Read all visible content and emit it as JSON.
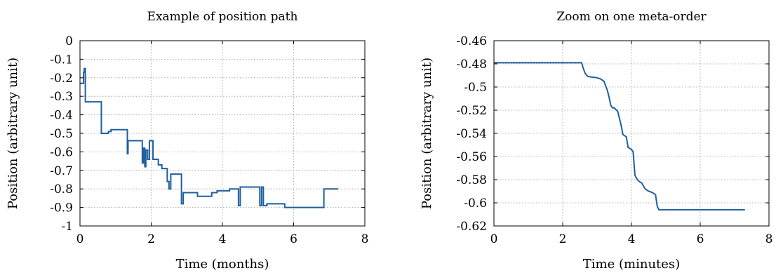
{
  "chart_data": [
    {
      "type": "line",
      "title": "Example of position path",
      "xlabel": "Time (months)",
      "ylabel": "Position (arbitrary unit)",
      "xlim": [
        0,
        8
      ],
      "ylim": [
        -1,
        0
      ],
      "xticks": [
        0,
        2,
        4,
        6,
        8
      ],
      "yticks": [
        0,
        -0.1,
        -0.2,
        -0.3,
        -0.4,
        -0.5,
        -0.6,
        -0.7,
        -0.8,
        -0.9,
        -1
      ],
      "xtick_labels": [
        "0",
        "2",
        "4",
        "6",
        "8"
      ],
      "ytick_labels": [
        "0",
        "-0.1",
        "-0.2",
        "-0.3",
        "-0.4",
        "-0.5",
        "-0.6",
        "-0.7",
        "-0.8",
        "-0.9",
        "-1"
      ],
      "grid": true,
      "color": "#1f5fa0",
      "series": [
        {
          "x": [
            0,
            0.1,
            0.1,
            0.12,
            0.12,
            0.15,
            0.15,
            0.25,
            0.25,
            0.6,
            0.6,
            0.8,
            0.8,
            0.87,
            0.87,
            1.33,
            1.33,
            1.35,
            1.35,
            1.75,
            1.75,
            1.78,
            1.78,
            1.82,
            1.82,
            1.85,
            1.85,
            1.9,
            1.9,
            1.95,
            1.95,
            2.05,
            2.05,
            2.2,
            2.2,
            2.3,
            2.3,
            2.45,
            2.45,
            2.5,
            2.5,
            2.55,
            2.55,
            2.6,
            2.6,
            2.85,
            2.85,
            2.9,
            2.9,
            3.3,
            3.3,
            3.7,
            3.7,
            3.85,
            3.85,
            4.2,
            4.2,
            4.45,
            4.45,
            4.5,
            4.5,
            5.05,
            5.05,
            5.1,
            5.1,
            5.15,
            5.15,
            5.25,
            5.25,
            5.3,
            5.3,
            5.75,
            5.75,
            6.85,
            6.85,
            7.25
          ],
          "y": [
            -0.23,
            -0.23,
            -0.17,
            -0.17,
            -0.15,
            -0.15,
            -0.33,
            -0.33,
            -0.33,
            -0.33,
            -0.5,
            -0.5,
            -0.49,
            -0.49,
            -0.48,
            -0.48,
            -0.61,
            -0.61,
            -0.54,
            -0.54,
            -0.66,
            -0.66,
            -0.58,
            -0.58,
            -0.68,
            -0.68,
            -0.59,
            -0.59,
            -0.64,
            -0.64,
            -0.54,
            -0.54,
            -0.64,
            -0.64,
            -0.67,
            -0.67,
            -0.69,
            -0.69,
            -0.76,
            -0.76,
            -0.8,
            -0.8,
            -0.72,
            -0.72,
            -0.72,
            -0.72,
            -0.88,
            -0.88,
            -0.82,
            -0.82,
            -0.84,
            -0.84,
            -0.82,
            -0.82,
            -0.81,
            -0.81,
            -0.8,
            -0.8,
            -0.89,
            -0.89,
            -0.79,
            -0.79,
            -0.89,
            -0.89,
            -0.79,
            -0.79,
            -0.89,
            -0.89,
            -0.88,
            -0.88,
            -0.88,
            -0.88,
            -0.9,
            -0.9,
            -0.8,
            -0.8
          ]
        }
      ]
    },
    {
      "type": "line",
      "title": "Zoom on one meta-order",
      "xlabel": "Time (minutes)",
      "ylabel": "Position (arbitrary unit)",
      "xlim": [
        0,
        8
      ],
      "ylim": [
        -0.62,
        -0.46
      ],
      "xticks": [
        0,
        2,
        4,
        6,
        8
      ],
      "yticks": [
        -0.46,
        -0.48,
        -0.5,
        -0.52,
        -0.54,
        -0.56,
        -0.58,
        -0.6,
        -0.62
      ],
      "xtick_labels": [
        "0",
        "2",
        "4",
        "6",
        "8"
      ],
      "ytick_labels": [
        "-0.46",
        "-0.48",
        "-0.5",
        "-0.52",
        "-0.54",
        "-0.56",
        "-0.58",
        "-0.6",
        "-0.62"
      ],
      "grid": true,
      "color": "#1f5fa0",
      "series": [
        {
          "x": [
            0,
            2.55,
            2.6,
            2.65,
            2.7,
            2.75,
            3.0,
            3.1,
            3.2,
            3.3,
            3.35,
            3.4,
            3.45,
            3.5,
            3.6,
            3.7,
            3.75,
            3.8,
            3.85,
            3.9,
            4.0,
            4.05,
            4.1,
            4.15,
            4.2,
            4.3,
            4.4,
            4.5,
            4.6,
            4.7,
            4.75,
            4.8,
            5.0,
            6.0,
            7.3
          ],
          "y": [
            -0.479,
            -0.479,
            -0.484,
            -0.488,
            -0.49,
            -0.491,
            -0.492,
            -0.493,
            -0.495,
            -0.503,
            -0.509,
            -0.516,
            -0.518,
            -0.518,
            -0.521,
            -0.533,
            -0.541,
            -0.542,
            -0.543,
            -0.552,
            -0.554,
            -0.556,
            -0.576,
            -0.579,
            -0.581,
            -0.583,
            -0.588,
            -0.59,
            -0.591,
            -0.593,
            -0.603,
            -0.606,
            -0.606,
            -0.606,
            -0.606
          ]
        }
      ]
    }
  ]
}
